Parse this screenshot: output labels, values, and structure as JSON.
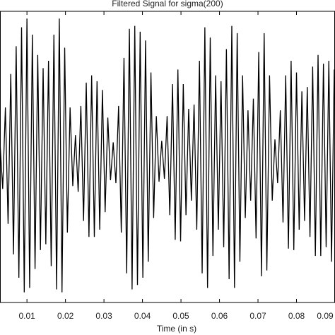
{
  "chart_data": {
    "type": "line",
    "title": "Filtered Signal for sigma(200)",
    "x_label": "Time (in s)",
    "color": "#000000",
    "x": [
      0.003,
      0.0037,
      0.0044,
      0.0051,
      0.0058,
      0.0065,
      0.0072,
      0.0079,
      0.0086,
      0.0093,
      0.01,
      0.0107,
      0.0114,
      0.0121,
      0.0128,
      0.0135,
      0.0142,
      0.0149,
      0.0156,
      0.0163,
      0.017,
      0.0177,
      0.0184,
      0.0191,
      0.0198,
      0.0205,
      0.0212,
      0.0219,
      0.0226,
      0.0233,
      0.024,
      0.0247,
      0.0254,
      0.0261,
      0.0268,
      0.0275,
      0.0282,
      0.0289,
      0.0296,
      0.0303,
      0.031,
      0.0317,
      0.0324,
      0.0331,
      0.0338,
      0.0345,
      0.0352,
      0.0359,
      0.0366,
      0.0373,
      0.038,
      0.0387,
      0.0394,
      0.0401,
      0.0408,
      0.0415,
      0.0422,
      0.0429,
      0.0436,
      0.0443,
      0.045,
      0.0457,
      0.0464,
      0.0471,
      0.0478,
      0.0485,
      0.0492,
      0.0499,
      0.0506,
      0.0513,
      0.052,
      0.0527,
      0.0534,
      0.0541,
      0.0548,
      0.0555,
      0.0562,
      0.0569,
      0.0576,
      0.0583,
      0.059,
      0.0597,
      0.0604,
      0.0611,
      0.0618,
      0.0625,
      0.0632,
      0.0639,
      0.0646,
      0.0653,
      0.066,
      0.0667,
      0.0674,
      0.0681,
      0.0688,
      0.0695,
      0.0702,
      0.0709,
      0.0716,
      0.0723,
      0.073,
      0.0737,
      0.0744,
      0.0751,
      0.0758,
      0.0765,
      0.0772,
      0.0779,
      0.0786,
      0.0793,
      0.08,
      0.0807,
      0.0814,
      0.0821,
      0.0828,
      0.0835,
      0.0842,
      0.0849,
      0.0856,
      0.0863,
      0.087,
      0.0877,
      0.0884,
      0.0891,
      0.0898
    ],
    "values": [
      0.1,
      -0.22,
      0.34,
      -0.46,
      0.57,
      -0.67,
      0.76,
      -0.83,
      0.89,
      -0.93,
      0.95,
      -0.9,
      0.84,
      -0.77,
      0.7,
      -0.64,
      0.61,
      -0.6,
      0.66,
      -0.75,
      0.84,
      -0.91,
      0.95,
      -0.93,
      0.75,
      -0.52,
      0.34,
      -0.2,
      0.15,
      -0.24,
      0.35,
      -0.44,
      0.51,
      -0.55,
      0.56,
      -0.55,
      0.52,
      -0.5,
      0.46,
      -0.38,
      0.27,
      -0.16,
      0.1,
      -0.18,
      0.35,
      -0.52,
      0.68,
      -0.8,
      0.88,
      -0.91,
      0.9,
      -0.88,
      0.86,
      -0.83,
      0.8,
      -0.72,
      0.58,
      -0.42,
      0.28,
      -0.17,
      0.11,
      -0.15,
      0.28,
      -0.4,
      0.5,
      -0.57,
      0.6,
      -0.58,
      0.5,
      -0.4,
      0.33,
      -0.3,
      0.36,
      -0.5,
      0.66,
      -0.8,
      0.89,
      -0.9,
      0.82,
      -0.68,
      0.56,
      -0.5,
      0.52,
      -0.62,
      0.74,
      -0.84,
      0.9,
      -0.9,
      0.85,
      -0.72,
      0.56,
      -0.42,
      0.32,
      -0.3,
      0.4,
      -0.56,
      0.72,
      -0.82,
      0.85,
      -0.78,
      0.56,
      -0.3,
      0.12,
      -0.18,
      0.32,
      -0.45,
      0.56,
      -0.63,
      0.66,
      -0.64,
      0.58,
      -0.5,
      0.45,
      -0.44,
      0.48,
      -0.55,
      0.62,
      -0.68,
      0.7,
      -0.68,
      0.64,
      -0.62,
      0.66,
      -0.72,
      0.6
    ],
    "xlim": [
      0.003,
      0.09
    ],
    "xticks": [
      0.01,
      0.02,
      0.03,
      0.04,
      0.05,
      0.06,
      0.07,
      0.08,
      0.09
    ],
    "ylim": [
      -1,
      1
    ]
  }
}
